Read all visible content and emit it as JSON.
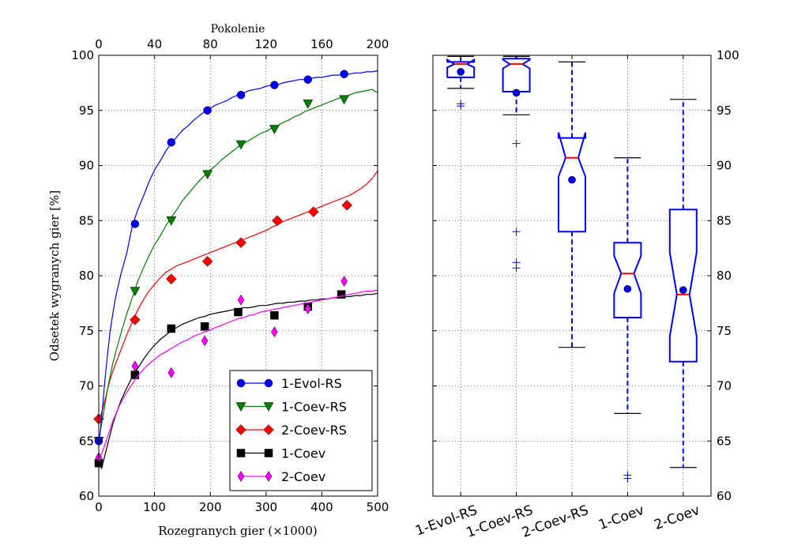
{
  "chart_data": [
    {
      "type": "line",
      "xlabel": "Rozegranych gier (×1000)",
      "ylabel": "Odsetek wygranych gier [%]",
      "top_xlabel": "Pokolenie",
      "xlim": [
        0,
        500
      ],
      "ylim": [
        60,
        100
      ],
      "top_xlim": [
        0,
        200
      ],
      "xticks": [
        0,
        100,
        200,
        300,
        400,
        500
      ],
      "top_xticks": [
        0,
        40,
        80,
        120,
        160,
        200
      ],
      "yticks": [
        60,
        65,
        70,
        75,
        80,
        85,
        90,
        95,
        100
      ],
      "grid": true,
      "legend_position": "bottom-right",
      "series": [
        {
          "name": "1-Evol-RS",
          "color": "#0000ff",
          "marker": "circle",
          "x": [
            0,
            5,
            10,
            15,
            20,
            25,
            30,
            40,
            50,
            60,
            70,
            80,
            90,
            100,
            110,
            120,
            130,
            140,
            150,
            160,
            170,
            180,
            190,
            200,
            210,
            220,
            230,
            240,
            250,
            260,
            270,
            280,
            290,
            300,
            310,
            320,
            330,
            340,
            350,
            360,
            370,
            380,
            390,
            400,
            410,
            420,
            430,
            440,
            450,
            460,
            470,
            480,
            490,
            500
          ],
          "values": [
            64.5,
            67.0,
            70.0,
            72.5,
            74.8,
            76.5,
            78.0,
            80.2,
            82.0,
            84.5,
            86.0,
            87.2,
            88.5,
            89.6,
            90.4,
            91.3,
            92.0,
            92.6,
            93.2,
            93.6,
            94.1,
            94.5,
            94.9,
            95.2,
            95.5,
            95.7,
            95.9,
            96.2,
            96.4,
            96.6,
            96.8,
            96.9,
            97.0,
            97.2,
            97.3,
            97.3,
            97.5,
            97.6,
            97.7,
            97.8,
            97.8,
            97.9,
            98.0,
            98.0,
            98.1,
            98.2,
            98.2,
            98.3,
            98.3,
            98.4,
            98.4,
            98.5,
            98.5,
            98.6
          ],
          "marker_x": [
            0,
            65,
            130,
            195,
            255,
            315,
            375,
            440
          ],
          "marker_y": [
            65.0,
            84.7,
            92.1,
            95.0,
            96.4,
            97.3,
            97.8,
            98.3
          ]
        },
        {
          "name": "1-Coev-RS",
          "color": "#007f00",
          "marker": "triangle-down",
          "x": [
            0,
            5,
            10,
            15,
            20,
            25,
            30,
            40,
            50,
            60,
            70,
            80,
            90,
            100,
            110,
            120,
            130,
            140,
            150,
            160,
            170,
            180,
            190,
            200,
            210,
            220,
            230,
            240,
            250,
            260,
            270,
            280,
            290,
            300,
            310,
            320,
            330,
            340,
            350,
            360,
            370,
            380,
            390,
            400,
            410,
            420,
            430,
            440,
            450,
            460,
            470,
            480,
            490,
            500
          ],
          "values": [
            65.0,
            66.5,
            68.0,
            69.5,
            70.8,
            72.0,
            73.0,
            74.8,
            76.5,
            78.0,
            79.5,
            80.7,
            81.8,
            82.8,
            83.6,
            84.5,
            85.3,
            86.0,
            86.8,
            87.4,
            88.0,
            88.6,
            89.1,
            89.6,
            90.0,
            90.5,
            90.9,
            91.3,
            91.7,
            92.0,
            92.3,
            92.6,
            92.9,
            93.1,
            93.4,
            93.6,
            93.9,
            94.1,
            94.4,
            94.6,
            94.9,
            95.1,
            95.3,
            95.5,
            95.7,
            95.9,
            96.1,
            96.2,
            96.4,
            96.6,
            96.7,
            96.8,
            96.9,
            96.6
          ],
          "marker_x": [
            0,
            65,
            130,
            195,
            255,
            315,
            375,
            440
          ],
          "marker_y": [
            65.0,
            78.6,
            85.0,
            89.2,
            91.9,
            93.3,
            95.6,
            96.0
          ]
        },
        {
          "name": "2-Coev-RS",
          "color": "#ff0000",
          "marker": "diamond",
          "x": [
            0,
            5,
            10,
            15,
            20,
            25,
            30,
            40,
            50,
            60,
            70,
            80,
            90,
            100,
            110,
            120,
            130,
            140,
            150,
            160,
            170,
            180,
            190,
            200,
            210,
            220,
            230,
            240,
            250,
            260,
            270,
            280,
            290,
            300,
            310,
            320,
            330,
            340,
            350,
            360,
            370,
            380,
            390,
            400,
            410,
            420,
            430,
            440,
            450,
            460,
            470,
            480,
            490,
            500
          ],
          "values": [
            67.0,
            67.5,
            68.5,
            69.5,
            70.5,
            71.3,
            72.0,
            73.3,
            74.6,
            75.8,
            76.9,
            77.8,
            78.6,
            79.2,
            79.8,
            80.3,
            80.6,
            80.9,
            81.1,
            81.3,
            81.5,
            81.7,
            81.9,
            82.1,
            82.3,
            82.5,
            82.7,
            82.9,
            83.1,
            83.3,
            83.5,
            83.7,
            83.9,
            84.1,
            84.4,
            84.6,
            84.9,
            85.1,
            85.3,
            85.5,
            85.7,
            85.9,
            86.1,
            86.3,
            86.5,
            86.7,
            86.9,
            87.1,
            87.3,
            87.6,
            87.9,
            88.3,
            88.8,
            89.5
          ],
          "marker_x": [
            0,
            65,
            130,
            195,
            255,
            320,
            385,
            445
          ],
          "marker_y": [
            67.0,
            76.0,
            79.7,
            81.3,
            83.0,
            85.0,
            85.8,
            86.4
          ]
        },
        {
          "name": "1-Coev",
          "color": "#000000",
          "marker": "square",
          "x": [
            0,
            5,
            10,
            15,
            20,
            25,
            30,
            40,
            50,
            60,
            70,
            80,
            90,
            100,
            110,
            120,
            130,
            140,
            150,
            160,
            170,
            180,
            190,
            200,
            210,
            220,
            230,
            240,
            250,
            260,
            270,
            280,
            290,
            300,
            310,
            320,
            330,
            340,
            350,
            360,
            370,
            380,
            390,
            400,
            410,
            420,
            430,
            440,
            450,
            460,
            470,
            480,
            490,
            500
          ],
          "values": [
            63.0,
            62.5,
            63.5,
            64.5,
            65.5,
            66.5,
            67.3,
            68.7,
            69.8,
            70.8,
            71.6,
            72.4,
            73.1,
            73.7,
            74.2,
            74.6,
            75.0,
            75.3,
            75.6,
            75.8,
            76.0,
            76.2,
            76.3,
            76.5,
            76.6,
            76.7,
            76.8,
            76.9,
            77.0,
            77.1,
            77.1,
            77.2,
            77.3,
            77.3,
            77.4,
            77.5,
            77.5,
            77.6,
            77.6,
            77.7,
            77.7,
            77.8,
            77.8,
            77.9,
            77.9,
            78.0,
            78.0,
            78.1,
            78.1,
            78.2,
            78.2,
            78.3,
            78.3,
            78.4
          ],
          "marker_x": [
            0,
            65,
            130,
            190,
            250,
            315,
            375,
            435
          ],
          "marker_y": [
            63.0,
            71.0,
            75.2,
            75.4,
            76.7,
            76.4,
            77.2,
            78.3
          ]
        },
        {
          "name": "2-Coev",
          "color": "#ff00ff",
          "marker": "thin-diamond",
          "x": [
            0,
            5,
            10,
            15,
            20,
            25,
            30,
            40,
            50,
            60,
            70,
            80,
            90,
            100,
            110,
            120,
            130,
            140,
            150,
            160,
            170,
            180,
            190,
            200,
            210,
            220,
            230,
            240,
            250,
            260,
            270,
            280,
            290,
            300,
            310,
            320,
            330,
            340,
            350,
            360,
            370,
            380,
            390,
            400,
            410,
            420,
            430,
            440,
            450,
            460,
            470,
            480,
            490,
            500
          ],
          "values": [
            63.5,
            63.8,
            64.5,
            65.3,
            66.0,
            66.8,
            67.4,
            68.5,
            69.4,
            70.2,
            70.9,
            71.5,
            72.0,
            72.4,
            72.8,
            73.1,
            73.4,
            73.7,
            74.0,
            74.2,
            74.5,
            74.7,
            74.9,
            75.1,
            75.3,
            75.5,
            75.7,
            75.9,
            76.1,
            76.2,
            76.4,
            76.5,
            76.7,
            76.8,
            76.9,
            77.0,
            77.1,
            77.2,
            77.3,
            77.4,
            77.5,
            77.6,
            77.7,
            77.8,
            77.9,
            78.0,
            78.1,
            78.2,
            78.3,
            78.4,
            78.5,
            78.6,
            78.6,
            78.7
          ],
          "marker_x": [
            0,
            65,
            130,
            190,
            255,
            315,
            375,
            440
          ],
          "marker_y": [
            63.5,
            71.8,
            71.2,
            74.1,
            77.8,
            74.9,
            77.0,
            79.5
          ]
        }
      ]
    },
    {
      "type": "box",
      "ylim": [
        60,
        100
      ],
      "yticks": [
        60,
        65,
        70,
        75,
        80,
        85,
        90,
        95,
        100
      ],
      "y_axis_side": "right",
      "grid": true,
      "notched": true,
      "categories": [
        "1-Evol-RS",
        "1-Coev-RS",
        "2-Coev-RS",
        "1-Coev",
        "2-Coev"
      ],
      "box_color": "#0000ff",
      "median_color": "#ff0000",
      "boxes": [
        {
          "label": "1-Evol-RS",
          "whisker_low": 97.0,
          "q1": 98.0,
          "median": 99.2,
          "q3": 99.4,
          "whisker_high": 99.9,
          "notch_low": 98.9,
          "notch_high": 99.6,
          "mean": 98.5,
          "outliers": [
            95.4,
            95.6
          ]
        },
        {
          "label": "1-Coev-RS",
          "whisker_low": 94.6,
          "q1": 96.7,
          "median": 99.2,
          "q3": 99.7,
          "whisker_high": 99.9,
          "notch_low": 98.8,
          "notch_high": 99.6,
          "mean": 96.6,
          "outliers": [
            92.0,
            84.0,
            81.2,
            80.7
          ]
        },
        {
          "label": "2-Coev-RS",
          "whisker_low": 73.5,
          "q1": 84.0,
          "median": 90.7,
          "q3": 92.5,
          "whisker_high": 99.4,
          "notch_low": 89.0,
          "notch_high": 93.0,
          "mean": 88.7,
          "outliers": []
        },
        {
          "label": "1-Coev",
          "whisker_low": 67.5,
          "q1": 76.2,
          "median": 80.2,
          "q3": 83.0,
          "whisker_high": 90.7,
          "notch_low": 78.4,
          "notch_high": 81.8,
          "mean": 78.8,
          "outliers": [
            61.6,
            61.9
          ]
        },
        {
          "label": "2-Coev",
          "whisker_low": 62.6,
          "q1": 72.2,
          "median": 78.3,
          "q3": 86.0,
          "whisker_high": 96.0,
          "notch_low": 74.5,
          "notch_high": 82.1,
          "mean": 78.7,
          "outliers": []
        }
      ]
    }
  ]
}
